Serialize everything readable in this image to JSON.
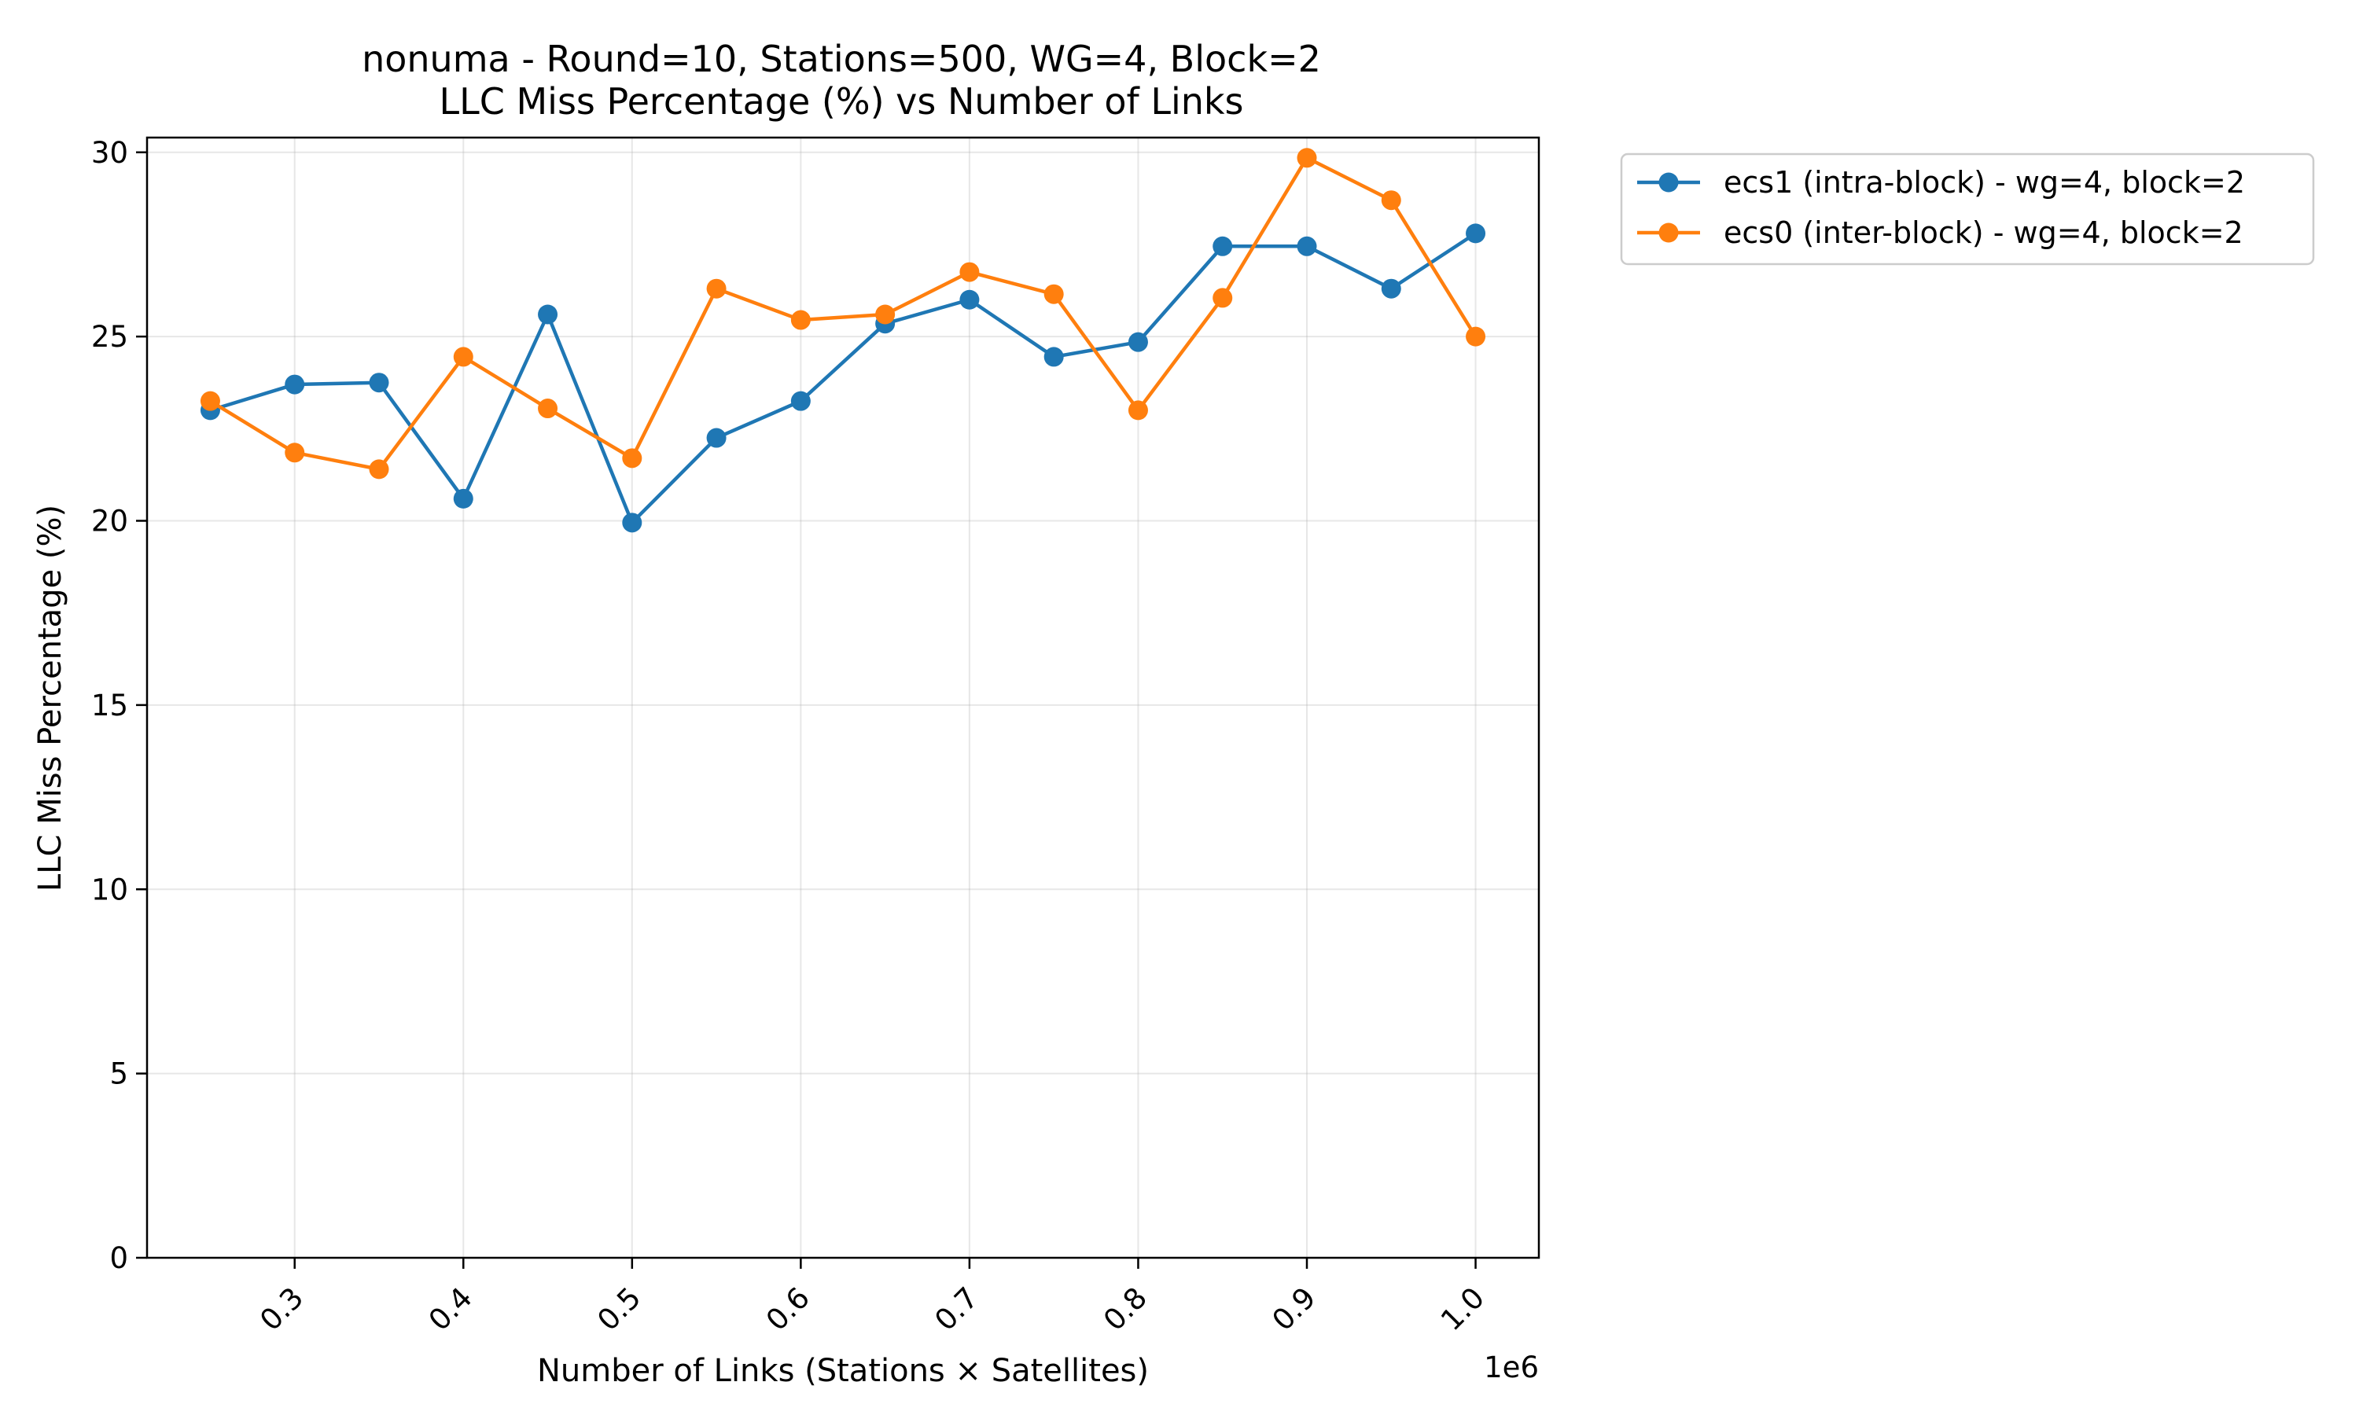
{
  "chart_data": {
    "type": "line",
    "title": "nonuma - Round=10, Stations=500, WG=4, Block=2",
    "subtitle": "LLC Miss Percentage (%) vs Number of Links",
    "xlabel": "Number of Links (Stations × Satellites)",
    "ylabel": "LLC Miss Percentage (%)",
    "x_offset_label": "1e6",
    "x": [
      0.25,
      0.3,
      0.35,
      0.4,
      0.45,
      0.5,
      0.55,
      0.6,
      0.65,
      0.7,
      0.75,
      0.8,
      0.85,
      0.9,
      0.95,
      1.0
    ],
    "xlim": [
      0.2125,
      1.0375
    ],
    "ylim": [
      0,
      30.4
    ],
    "x_ticks": [
      {
        "value": 0.3,
        "label": "0.3"
      },
      {
        "value": 0.4,
        "label": "0.4"
      },
      {
        "value": 0.5,
        "label": "0.5"
      },
      {
        "value": 0.6,
        "label": "0.6"
      },
      {
        "value": 0.7,
        "label": "0.7"
      },
      {
        "value": 0.8,
        "label": "0.8"
      },
      {
        "value": 0.9,
        "label": "0.9"
      },
      {
        "value": 1.0,
        "label": "1.0"
      }
    ],
    "y_ticks": [
      {
        "value": 0,
        "label": "0"
      },
      {
        "value": 5,
        "label": "5"
      },
      {
        "value": 10,
        "label": "10"
      },
      {
        "value": 15,
        "label": "15"
      },
      {
        "value": 20,
        "label": "20"
      },
      {
        "value": 25,
        "label": "25"
      },
      {
        "value": 30,
        "label": "30"
      }
    ],
    "grid": true,
    "legend_position": "outside-top-right",
    "series": [
      {
        "name": "ecs1 (intra-block) - wg=4, block=2",
        "color": "#1f77b4",
        "values": [
          23.0,
          23.7,
          23.75,
          20.6,
          25.6,
          19.95,
          22.25,
          23.25,
          25.35,
          26.0,
          24.45,
          24.85,
          27.45,
          27.45,
          26.3,
          27.8
        ]
      },
      {
        "name": "ecs0 (inter-block) - wg=4, block=2",
        "color": "#ff7f0e",
        "values": [
          23.25,
          21.85,
          21.4,
          24.45,
          23.05,
          21.7,
          26.3,
          25.45,
          25.6,
          26.75,
          26.15,
          23.0,
          26.05,
          29.85,
          28.7,
          25.0
        ]
      }
    ]
  }
}
